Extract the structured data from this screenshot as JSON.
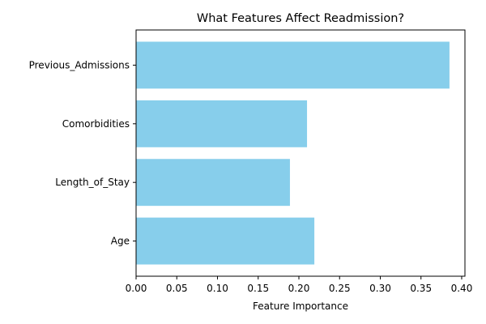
{
  "chart_data": {
    "type": "bar",
    "orientation": "horizontal",
    "title": "What Features Affect Readmission?",
    "xlabel": "Feature Importance",
    "ylabel": "",
    "categories": [
      "Age",
      "Length_of_Stay",
      "Comorbidities",
      "Previous_Admissions"
    ],
    "values": [
      0.219,
      0.189,
      0.21,
      0.385
    ],
    "xlim": [
      0,
      0.404
    ],
    "xticks": [
      0.0,
      0.05,
      0.1,
      0.15,
      0.2,
      0.25,
      0.3,
      0.35,
      0.4
    ],
    "xtick_labels": [
      "0.00",
      "0.05",
      "0.10",
      "0.15",
      "0.20",
      "0.25",
      "0.30",
      "0.35",
      "0.40"
    ],
    "grid": false,
    "bar_color": "#87ceeb"
  }
}
